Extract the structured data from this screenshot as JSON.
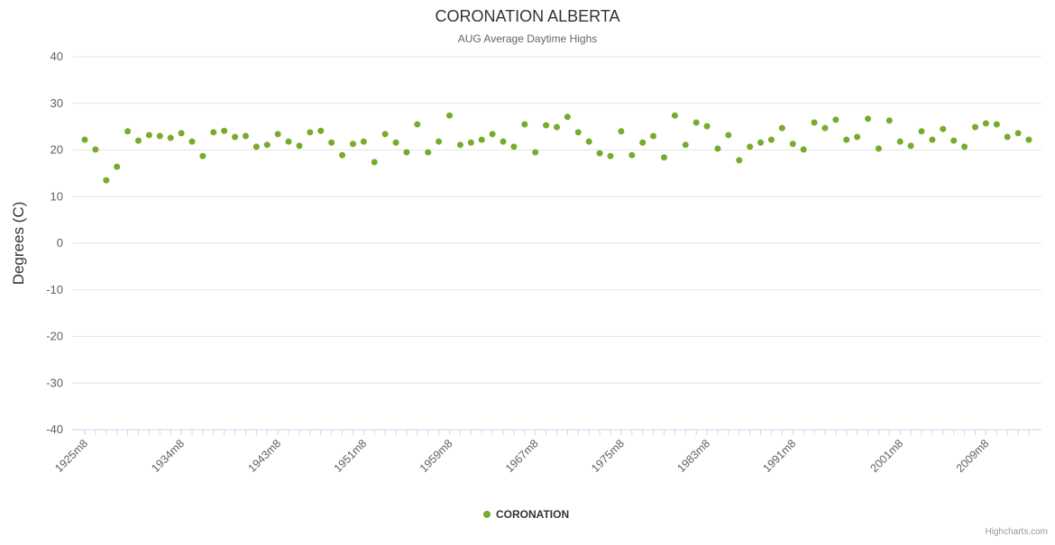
{
  "title": "CORONATION ALBERTA",
  "subtitle": "AUG Average Daytime Highs",
  "ylabel": "Degrees (C)",
  "legend": {
    "label": "CORONATION"
  },
  "credits": "Highcharts.com",
  "colors": {
    "point": "#77ab2a",
    "grid": "#e6e6e6",
    "axis": "#ccd6eb",
    "label": "#606060",
    "title": "#333333",
    "credits": "#999999"
  },
  "chart_data": {
    "type": "scatter",
    "title": "CORONATION ALBERTA",
    "subtitle": "AUG Average Daytime Highs",
    "xlabel": "",
    "ylabel": "Degrees (C)",
    "ylim": [
      -40,
      40
    ],
    "ytick_step": 10,
    "grid": true,
    "legend_position": "bottom",
    "series_name": "CORONATION",
    "x_unit_suffix": "m8",
    "x_tick_labels": [
      "1925m8",
      "1934m8",
      "1943m8",
      "1951m8",
      "1959m8",
      "1967m8",
      "1975m8",
      "1983m8",
      "1991m8",
      "2001m8",
      "2009m8"
    ],
    "x": [
      1925,
      1926,
      1927,
      1928,
      1929,
      1930,
      1931,
      1932,
      1933,
      1934,
      1935,
      1936,
      1937,
      1938,
      1939,
      1940,
      1941,
      1942,
      1943,
      1944,
      1945,
      1946,
      1947,
      1948,
      1949,
      1950,
      1951,
      1952,
      1953,
      1954,
      1955,
      1956,
      1957,
      1958,
      1959,
      1960,
      1961,
      1962,
      1963,
      1964,
      1965,
      1966,
      1967,
      1968,
      1969,
      1970,
      1971,
      1972,
      1973,
      1974,
      1975,
      1976,
      1977,
      1978,
      1979,
      1980,
      1981,
      1982,
      1983,
      1984,
      1985,
      1986,
      1987,
      1988,
      1989,
      1990,
      1991,
      1992,
      1993,
      1994,
      1995,
      1996,
      1997,
      1998,
      1999,
      2000,
      2001,
      2002,
      2003,
      2004,
      2005,
      2006,
      2007,
      2008,
      2009,
      2010,
      2011,
      2012,
      2013
    ],
    "values": [
      22.2,
      20.1,
      13.5,
      16.4,
      24.0,
      22.0,
      23.2,
      23.0,
      22.6,
      23.6,
      21.8,
      18.7,
      23.8,
      24.1,
      22.8,
      23.0,
      20.7,
      21.1,
      23.4,
      21.8,
      20.9,
      23.8,
      24.1,
      21.6,
      18.9,
      21.3,
      21.8,
      17.4,
      23.4,
      21.6,
      19.5,
      25.5,
      19.5,
      21.8,
      27.4,
      21.1,
      21.6,
      22.2,
      23.4,
      21.8,
      20.7,
      25.5,
      19.5,
      25.3,
      24.9,
      27.1,
      23.8,
      21.8,
      19.3,
      18.7,
      24.0,
      18.9,
      21.6,
      23.0,
      18.4,
      27.4,
      21.1,
      25.9,
      25.1,
      20.3,
      23.2,
      17.8,
      20.7,
      21.6,
      22.2,
      24.7,
      21.3,
      20.1,
      25.9,
      24.7,
      26.5,
      22.2,
      22.8,
      26.7,
      20.3,
      26.3,
      21.8,
      20.9,
      24.0,
      22.2,
      24.5,
      22.0,
      20.7,
      24.9,
      25.7,
      25.5,
      22.8,
      23.6,
      22.2
    ]
  }
}
